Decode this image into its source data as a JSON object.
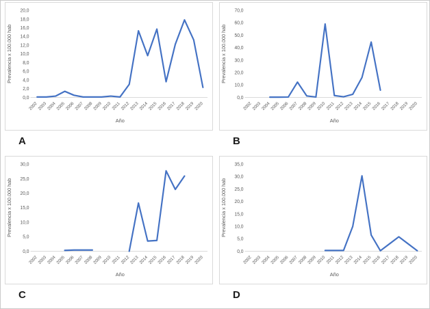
{
  "figure": {
    "background": "#ffffff",
    "outer_border_color": "#c9c9c9",
    "panel_border_color": "#d9d9d9",
    "line_color": "#4472C4",
    "axis_line_color": "#d9d9d9",
    "tick_label_color": "#595959",
    "panel_letter_color": "#1a1a1a"
  },
  "chart_data": [
    {
      "type": "line",
      "panel": "A",
      "xlabel": "Año",
      "ylabel": "Prevalencia x 100.000 hab",
      "ylim": [
        0,
        20
      ],
      "ytick_step": 2,
      "grid": false,
      "legend": "none",
      "categories": [
        "2002",
        "2003",
        "2004",
        "2005",
        "2006",
        "2007",
        "2008",
        "2009",
        "2010",
        "2011",
        "2012",
        "2013",
        "2014",
        "2015",
        "2016",
        "2017",
        "2018",
        "2019",
        "2020"
      ],
      "values": [
        0.1,
        0.1,
        0.3,
        1.4,
        0.5,
        0.1,
        0.1,
        0.1,
        0.3,
        0.1,
        3.0,
        15.3,
        9.6,
        15.7,
        3.6,
        12.2,
        17.8,
        13.2,
        2.3
      ]
    },
    {
      "type": "line",
      "panel": "B",
      "xlabel": "Año",
      "ylabel": "Prevalencia x 100.000 hab",
      "ylim": [
        0,
        70
      ],
      "ytick_step": 10,
      "grid": false,
      "legend": "none",
      "categories": [
        "2002",
        "2003",
        "2004",
        "2005",
        "2006",
        "2007",
        "2008",
        "2009",
        "2010",
        "2011",
        "2012",
        "2013",
        "2014",
        "2015",
        "2016",
        "2017",
        "2018",
        "2019",
        "2020"
      ],
      "values": [
        null,
        null,
        0.2,
        0.2,
        0.3,
        12.3,
        1.2,
        0.3,
        59.0,
        1.5,
        0.5,
        2.5,
        16.0,
        44.5,
        5.8,
        null,
        null,
        null,
        null
      ]
    },
    {
      "type": "line",
      "panel": "C",
      "xlabel": "Año",
      "ylabel": "Prevalencia x 100.000 hab",
      "ylim": [
        0,
        30
      ],
      "ytick_step": 5,
      "grid": false,
      "legend": "none",
      "categories": [
        "2002",
        "2003",
        "2004",
        "2005",
        "2006",
        "2007",
        "2008",
        "2009",
        "2010",
        "2011",
        "2012",
        "2013",
        "2014",
        "2015",
        "2016",
        "2017",
        "2018",
        "2019",
        "2020"
      ],
      "values": [
        null,
        null,
        null,
        0.3,
        0.4,
        0.4,
        0.4,
        null,
        null,
        null,
        0.0,
        16.6,
        3.5,
        3.7,
        27.7,
        21.3,
        25.9,
        null,
        null
      ]
    },
    {
      "type": "line",
      "panel": "D",
      "xlabel": "Año",
      "ylabel": "Prevalencia x 100.000 hab",
      "ylim": [
        0,
        35
      ],
      "ytick_step": 5,
      "grid": false,
      "legend": "none",
      "categories": [
        "2002",
        "2003",
        "2004",
        "2005",
        "2006",
        "2007",
        "2008",
        "2009",
        "2010",
        "2011",
        "2012",
        "2013",
        "2014",
        "2015",
        "2016",
        "2017",
        "2018",
        "2019",
        "2020"
      ],
      "values": [
        null,
        null,
        null,
        null,
        null,
        null,
        null,
        null,
        0.3,
        0.3,
        0.3,
        10.0,
        30.3,
        6.5,
        0.2,
        3.0,
        5.8,
        3.0,
        0.2
      ]
    }
  ]
}
